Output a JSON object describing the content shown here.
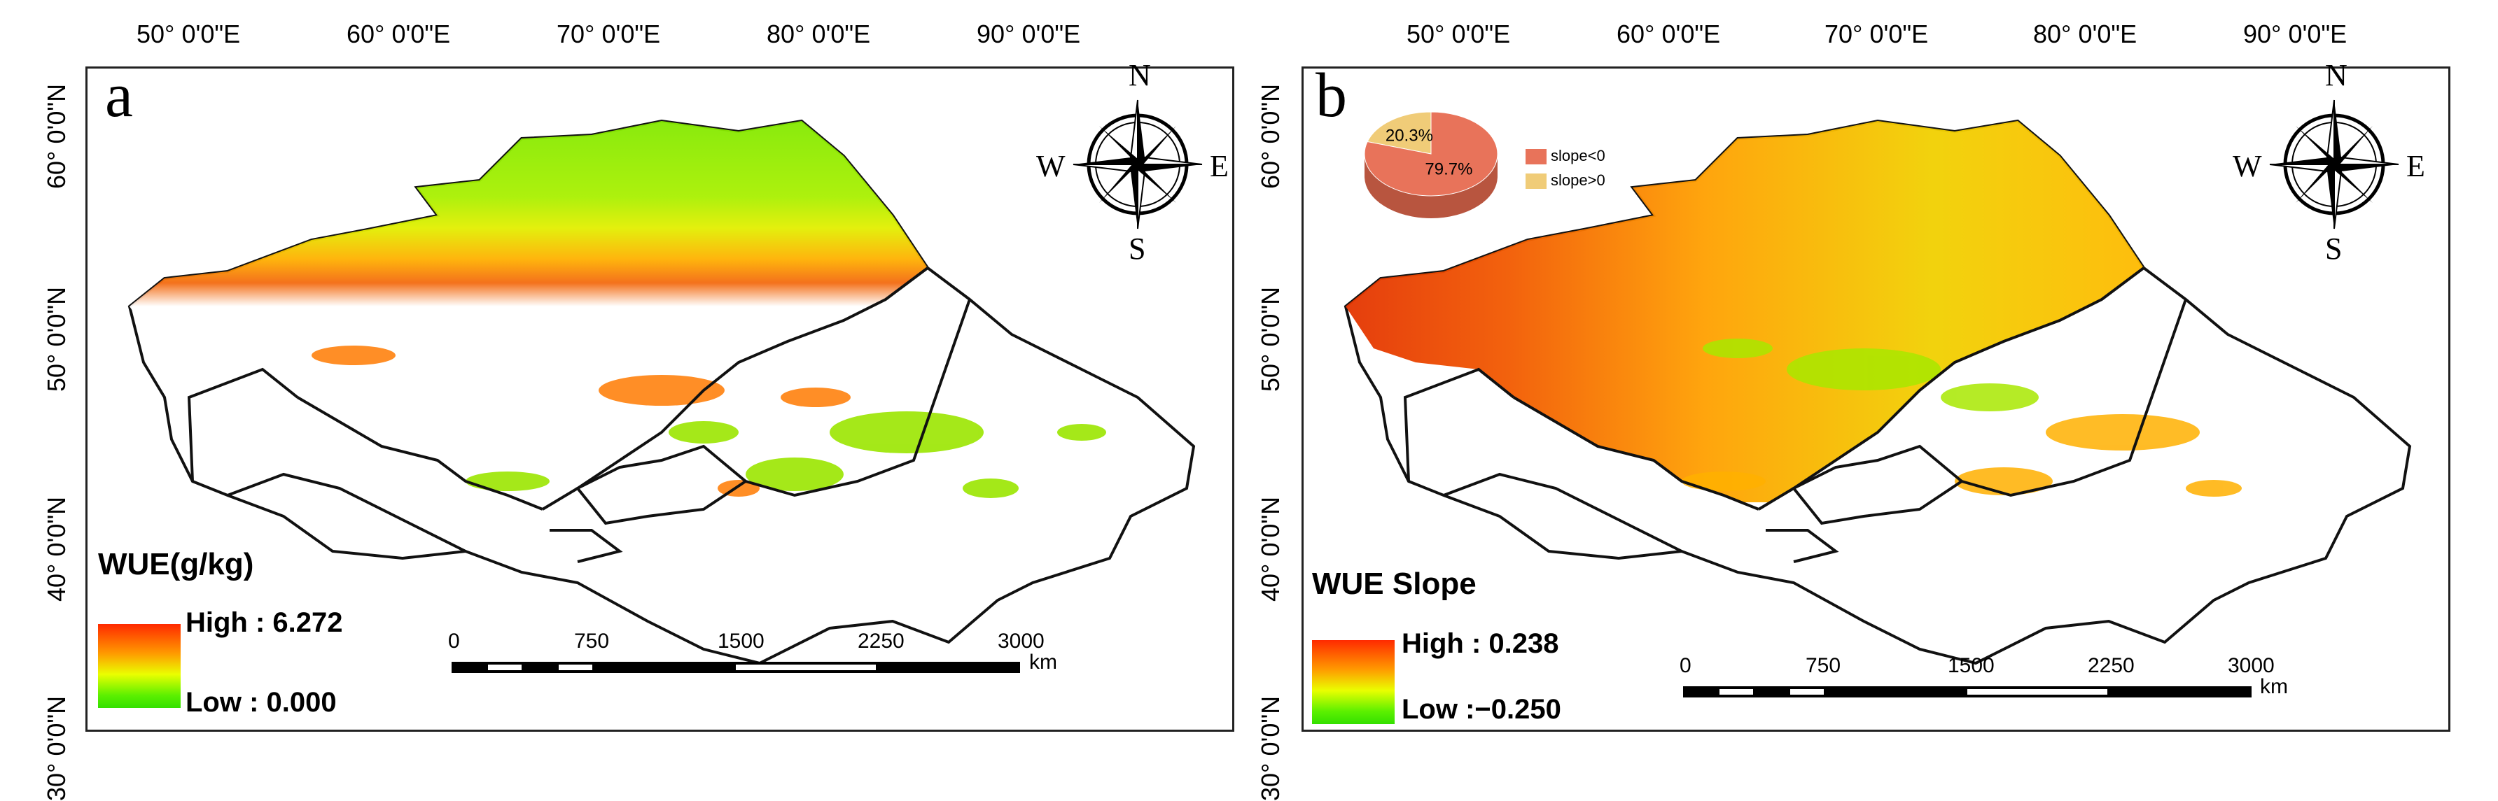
{
  "longitude_labels": [
    "50°  0'0\"E",
    "60°  0'0\"E",
    "70°  0'0\"E",
    "80°  0'0\"E",
    "90°  0'0\"E"
  ],
  "latitude_labels": [
    "60°  0'0\"N",
    "50°  0'0\"N",
    "40°  0'0\"N",
    "30°  0'0\"N"
  ],
  "compass": {
    "n": "N",
    "s": "S",
    "e": "E",
    "w": "W"
  },
  "scale": {
    "ticks": [
      "0",
      "750",
      "1500",
      "2250",
      "3000"
    ],
    "unit": "km"
  },
  "panel_a": {
    "letter": "a",
    "legend_title": "WUE(g/kg)",
    "high": "High : 6.272",
    "low": "Low : 0.000"
  },
  "panel_b": {
    "letter": "b",
    "legend_title": "WUE Slope",
    "high": "High : 0.238",
    "low": "Low :−0.250",
    "pie": {
      "slices": [
        {
          "label": "slope<0",
          "percent_text": "79.7%",
          "value": 79.7,
          "color": "#e8735a"
        },
        {
          "label": "slope>0",
          "percent_text": "20.3%",
          "value": 20.3,
          "color": "#f0cc78"
        }
      ]
    }
  },
  "colors": {
    "high": "#ff2a00",
    "mid": "#ff9a00",
    "yellow": "#eaff00",
    "low": "#33e000",
    "border": "#111111"
  }
}
